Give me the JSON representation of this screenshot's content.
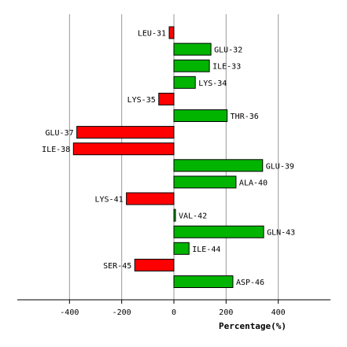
{
  "chart_data": {
    "type": "bar",
    "orientation": "horizontal",
    "categories": [
      "LEU-31",
      "GLU-32",
      "ILE-33",
      "LYS-34",
      "LYS-35",
      "THR-36",
      "GLU-37",
      "ILE-38",
      "GLU-39",
      "ALA-40",
      "LYS-41",
      "VAL-42",
      "GLN-43",
      "ILE-44",
      "SER-45",
      "ASP-46"
    ],
    "values": [
      -18,
      142,
      136,
      82,
      -58,
      204,
      -372,
      -385,
      340,
      238,
      -182,
      6,
      344,
      58,
      -150,
      226
    ],
    "xlabel": "Percentage(%)",
    "ylabel": "",
    "xlim": [
      -600,
      600
    ],
    "xticks": [
      -400,
      -200,
      0,
      200,
      400
    ],
    "grid": "vertical",
    "colors": {
      "positive": "#00b400",
      "negative": "#ff0000",
      "bar_outline": "#000000",
      "grid": "#999999",
      "axis": "#000000"
    }
  }
}
